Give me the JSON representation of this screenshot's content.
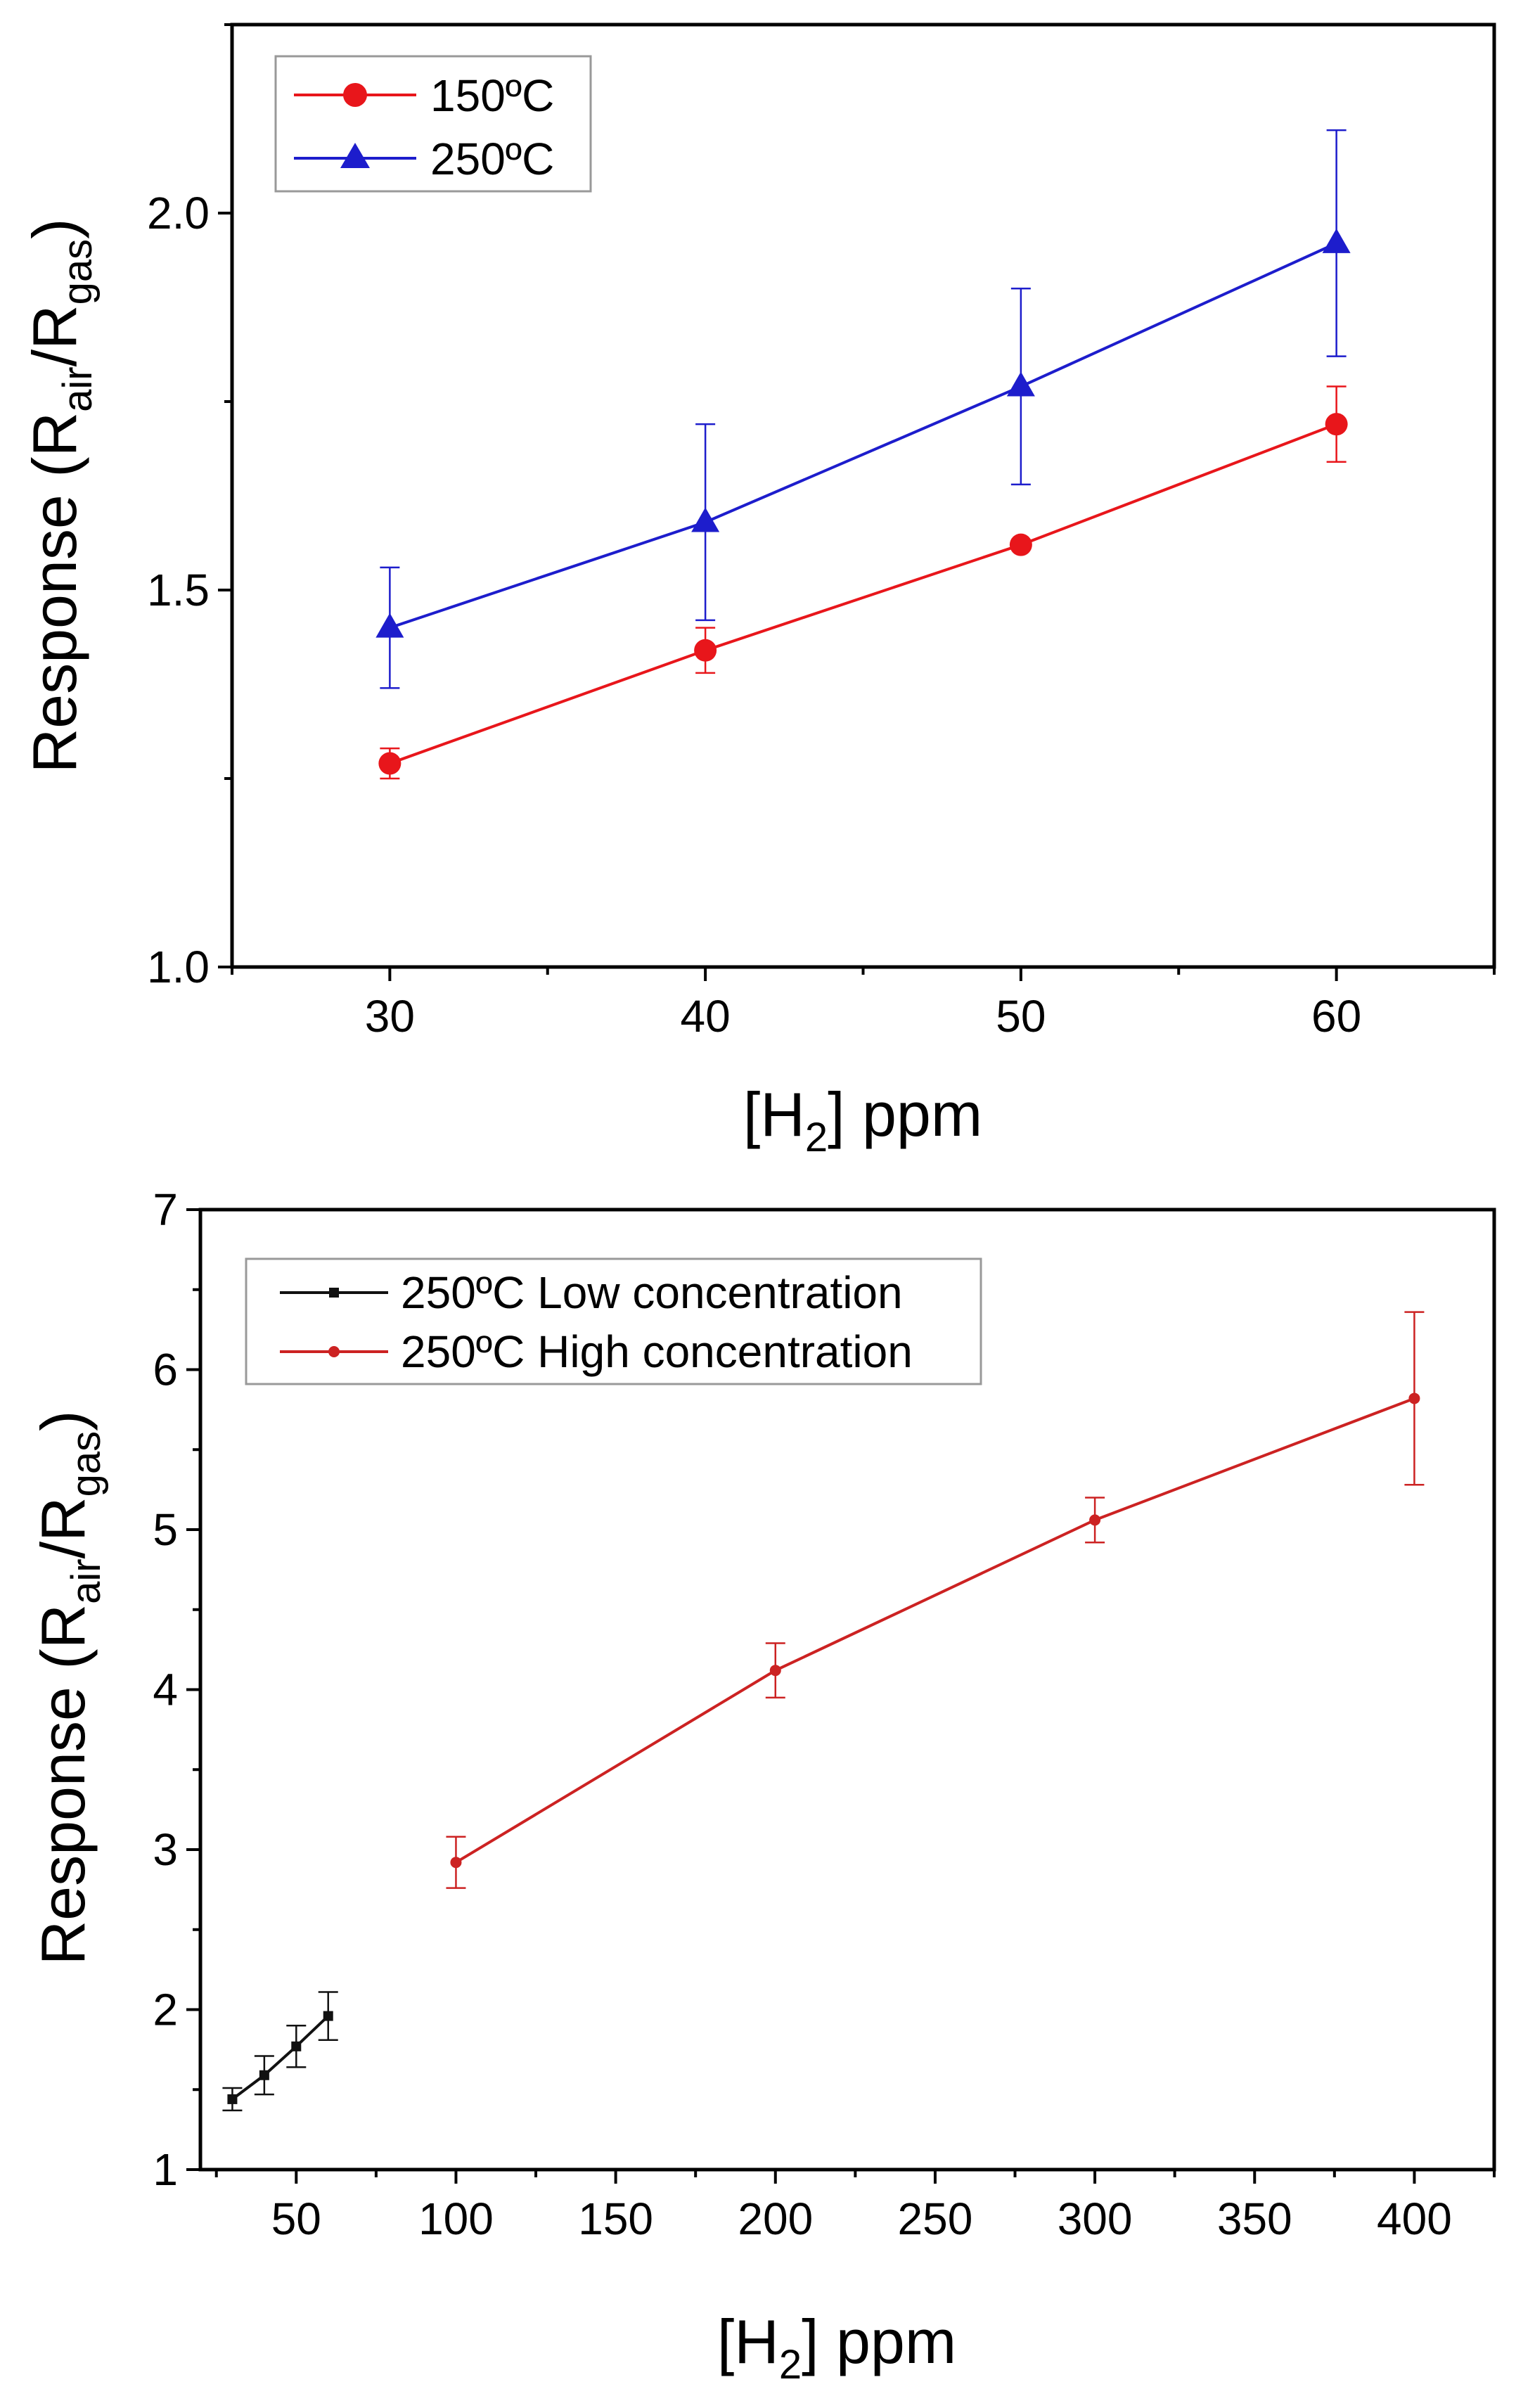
{
  "chart_data": [
    {
      "type": "line",
      "title": "",
      "xlabel": {
        "prefix": "[H",
        "sub": "2",
        "suffix": "] ppm"
      },
      "ylabel": {
        "prefix": "Response (R",
        "sub1": "air",
        "mid": "/R",
        "sub2": "gas",
        "suffix": ")"
      },
      "xlim": [
        25,
        65
      ],
      "ylim": [
        1.0,
        2.25
      ],
      "x_major_ticks": [
        30,
        40,
        50,
        60
      ],
      "x_tick_labels": [
        "30",
        "40",
        "50",
        "60"
      ],
      "y_major_ticks": [
        1.0,
        1.5,
        2.0
      ],
      "y_tick_labels": [
        "1.0",
        "1.5",
        "2.0"
      ],
      "legend_position": "top-left",
      "series": [
        {
          "name": "150ºC",
          "color": "#e8161b",
          "marker": "circle",
          "x": [
            30,
            40,
            50,
            60
          ],
          "y": [
            1.27,
            1.42,
            1.56,
            1.72
          ],
          "err": [
            0.02,
            0.03,
            0.0,
            0.05
          ]
        },
        {
          "name": "250ºC",
          "color": "#1d1dcc",
          "marker": "triangle",
          "x": [
            30,
            40,
            50,
            60
          ],
          "y": [
            1.45,
            1.59,
            1.77,
            1.96
          ],
          "err": [
            0.08,
            0.13,
            0.13,
            0.15
          ]
        }
      ]
    },
    {
      "type": "line",
      "title": "",
      "xlabel": {
        "prefix": "[H",
        "sub": "2",
        "suffix": "] ppm"
      },
      "ylabel": {
        "prefix": "Response (R",
        "sub1": "air",
        "mid": "/R",
        "sub2": "gas",
        "suffix": ")"
      },
      "xlim": [
        20,
        425
      ],
      "ylim": [
        1,
        7
      ],
      "x_major_ticks": [
        50,
        100,
        150,
        200,
        250,
        300,
        350,
        400
      ],
      "x_tick_labels": [
        "50",
        "100",
        "150",
        "200",
        "250",
        "300",
        "350",
        "400"
      ],
      "y_major_ticks": [
        1,
        2,
        3,
        4,
        5,
        6,
        7
      ],
      "y_tick_labels": [
        "1",
        "2",
        "3",
        "4",
        "5",
        "6",
        "7"
      ],
      "legend_position": "top-left",
      "series": [
        {
          "name": "250ºC Low concentration",
          "color": "#111111",
          "marker": "square",
          "x": [
            30,
            40,
            50,
            60
          ],
          "y": [
            1.44,
            1.59,
            1.77,
            1.96
          ],
          "err": [
            0.07,
            0.12,
            0.13,
            0.15
          ]
        },
        {
          "name": "250ºC High concentration",
          "color": "#cc2222",
          "marker": "dot",
          "x": [
            100,
            200,
            300,
            400
          ],
          "y": [
            2.92,
            4.12,
            5.06,
            5.82
          ],
          "err": [
            0.16,
            0.17,
            0.14,
            0.54
          ]
        }
      ]
    }
  ]
}
